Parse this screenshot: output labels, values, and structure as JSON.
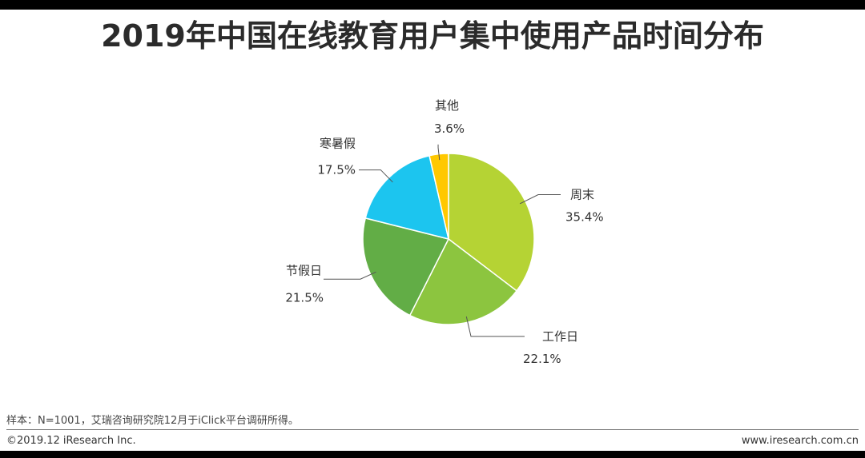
{
  "title": "2019年中国在线教育用户集中使用产品时间分布",
  "chart_data": {
    "type": "pie",
    "title": "2019年中国在线教育用户集中使用产品时间分布",
    "slices": [
      {
        "label": "周末",
        "value": 35.4,
        "value_label": "35.4%",
        "color": "#b5d334"
      },
      {
        "label": "工作日",
        "value": 22.1,
        "value_label": "22.1%",
        "color": "#8cc53f"
      },
      {
        "label": "节假日",
        "value": 21.5,
        "value_label": "21.5%",
        "color": "#62ad46"
      },
      {
        "label": "寒暑假",
        "value": 17.5,
        "value_label": "17.5%",
        "color": "#1cc5ef"
      },
      {
        "label": "其他",
        "value": 3.6,
        "value_label": "3.6%",
        "color": "#ffc800"
      }
    ],
    "start": "12 o'clock",
    "direction": "clockwise"
  },
  "footer": {
    "note": "样本：N=1001，艾瑞咨询研究院12月于iClick平台调研所得。",
    "copyright": "©2019.12 iResearch Inc.",
    "website": "www.iresearch.com.cn"
  }
}
